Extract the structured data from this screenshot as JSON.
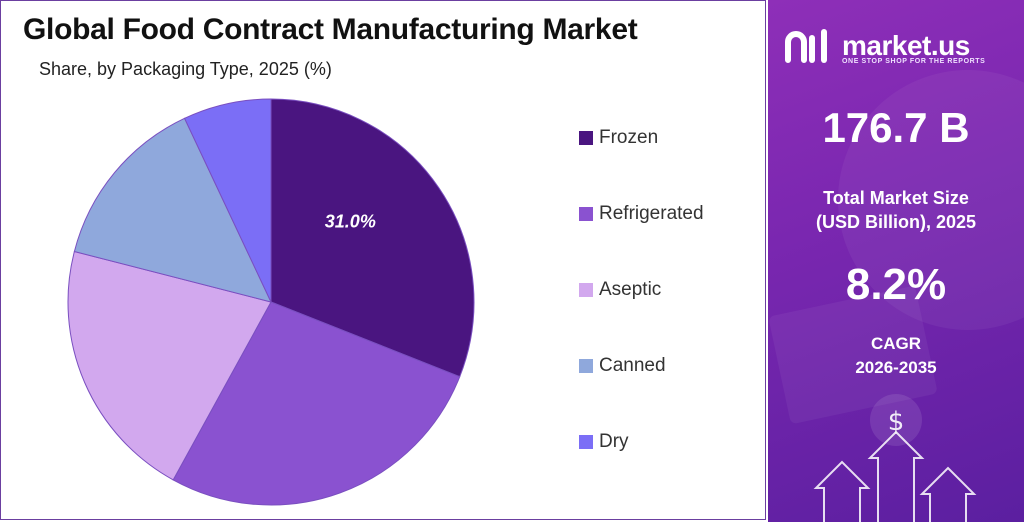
{
  "title": "Global Food Contract Manufacturing Market",
  "subtitle": "Share, by Packaging Type, 2025 (%)",
  "chart_data": {
    "type": "pie",
    "categories": [
      "Frozen",
      "Refrigerated",
      "Aseptic",
      "Canned",
      "Dry"
    ],
    "values": [
      31.0,
      27.0,
      21.0,
      14.0,
      7.0
    ],
    "colors": [
      "#4a1580",
      "#8a52d0",
      "#d2a8ee",
      "#8fa8dc",
      "#7b6ef6"
    ],
    "data_labels": [
      "31.0%",
      "",
      "",
      "",
      ""
    ],
    "legend_placement": "right"
  },
  "panel": {
    "brand": "market.us",
    "tagline": "ONE STOP SHOP FOR THE REPORTS",
    "market_size": "176.7 B",
    "market_size_label_line1": "Total Market Size",
    "market_size_label_line2": "(USD Billion), 2025",
    "cagr": "8.2%",
    "cagr_label_line1": "CAGR",
    "cagr_label_line2": "2026-2035",
    "dollar_symbol": "$",
    "icons": [
      "market-us-logo-icon",
      "dollar-coin-icon",
      "arrow-up-icon"
    ]
  }
}
